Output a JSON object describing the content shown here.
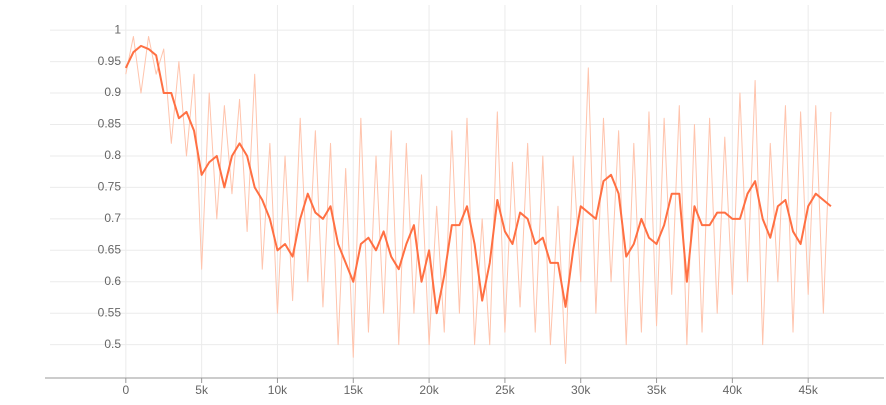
{
  "chart_data": {
    "type": "line",
    "x": [
      0,
      500,
      1000,
      1500,
      2000,
      2500,
      3000,
      3500,
      4000,
      4500,
      5000,
      5500,
      6000,
      6500,
      7000,
      7500,
      8000,
      8500,
      9000,
      9500,
      10000,
      10500,
      11000,
      11500,
      12000,
      12500,
      13000,
      13500,
      14000,
      14500,
      15000,
      15500,
      16000,
      16500,
      17000,
      17500,
      18000,
      18500,
      19000,
      19500,
      20000,
      20500,
      21000,
      21500,
      22000,
      22500,
      23000,
      23500,
      24000,
      24500,
      25000,
      25500,
      26000,
      26500,
      27000,
      27500,
      28000,
      28500,
      29000,
      29500,
      30000,
      30500,
      31000,
      31500,
      32000,
      32500,
      33000,
      33500,
      34000,
      34500,
      35000,
      35500,
      36000,
      36500,
      37000,
      37500,
      38000,
      38500,
      39000,
      39500,
      40000,
      40500,
      41000,
      41500,
      42000,
      42500,
      43000,
      43500,
      44000,
      44500,
      45000,
      45500,
      46000,
      46500
    ],
    "series": [
      {
        "color": "#ffc4ad",
        "values": [
          0.93,
          0.99,
          0.9,
          0.99,
          0.93,
          0.97,
          0.82,
          0.95,
          0.8,
          0.93,
          0.62,
          0.9,
          0.7,
          0.88,
          0.74,
          0.89,
          0.68,
          0.93,
          0.62,
          0.82,
          0.55,
          0.8,
          0.57,
          0.86,
          0.6,
          0.84,
          0.56,
          0.82,
          0.5,
          0.78,
          0.48,
          0.86,
          0.52,
          0.8,
          0.55,
          0.84,
          0.5,
          0.82,
          0.55,
          0.77,
          0.5,
          0.72,
          0.52,
          0.84,
          0.55,
          0.86,
          0.5,
          0.7,
          0.5,
          0.87,
          0.52,
          0.79,
          0.56,
          0.82,
          0.52,
          0.8,
          0.5,
          0.72,
          0.47,
          0.8,
          0.6,
          0.94,
          0.55,
          0.86,
          0.6,
          0.84,
          0.5,
          0.82,
          0.52,
          0.87,
          0.53,
          0.86,
          0.58,
          0.88,
          0.5,
          0.85,
          0.52,
          0.86,
          0.55,
          0.83,
          0.58,
          0.9,
          0.6,
          0.92,
          0.5,
          0.82,
          0.6,
          0.88,
          0.52,
          0.87,
          0.58,
          0.88,
          0.55,
          0.87
        ]
      },
      {
        "color": "#ff7043",
        "values": [
          0.94,
          0.965,
          0.975,
          0.97,
          0.96,
          0.9,
          0.9,
          0.86,
          0.87,
          0.84,
          0.77,
          0.79,
          0.8,
          0.75,
          0.8,
          0.82,
          0.8,
          0.75,
          0.73,
          0.7,
          0.65,
          0.66,
          0.64,
          0.7,
          0.74,
          0.71,
          0.7,
          0.72,
          0.66,
          0.63,
          0.6,
          0.66,
          0.67,
          0.65,
          0.68,
          0.64,
          0.62,
          0.66,
          0.69,
          0.6,
          0.65,
          0.55,
          0.61,
          0.69,
          0.69,
          0.72,
          0.66,
          0.57,
          0.63,
          0.73,
          0.68,
          0.66,
          0.71,
          0.7,
          0.66,
          0.67,
          0.63,
          0.63,
          0.56,
          0.65,
          0.72,
          0.71,
          0.7,
          0.76,
          0.77,
          0.74,
          0.64,
          0.66,
          0.7,
          0.67,
          0.66,
          0.69,
          0.74,
          0.74,
          0.6,
          0.72,
          0.69,
          0.69,
          0.71,
          0.71,
          0.7,
          0.7,
          0.74,
          0.76,
          0.7,
          0.67,
          0.72,
          0.73,
          0.68,
          0.66,
          0.72,
          0.74,
          0.73,
          0.72
        ]
      }
    ],
    "xlim": [
      -5000,
      50000
    ],
    "ylim": [
      0.447,
      1.04
    ],
    "xticks": [
      {
        "value": 0,
        "label": "0"
      },
      {
        "value": 5000,
        "label": "5k"
      },
      {
        "value": 10000,
        "label": "10k"
      },
      {
        "value": 15000,
        "label": "15k"
      },
      {
        "value": 20000,
        "label": "20k"
      },
      {
        "value": 25000,
        "label": "25k"
      },
      {
        "value": 30000,
        "label": "30k"
      },
      {
        "value": 35000,
        "label": "35k"
      },
      {
        "value": 40000,
        "label": "40k"
      },
      {
        "value": 45000,
        "label": "45k"
      }
    ],
    "yticks": [
      0.5,
      0.55,
      0.6,
      0.65,
      0.7,
      0.75,
      0.8,
      0.85,
      0.9,
      0.95,
      1
    ],
    "grid": true
  }
}
